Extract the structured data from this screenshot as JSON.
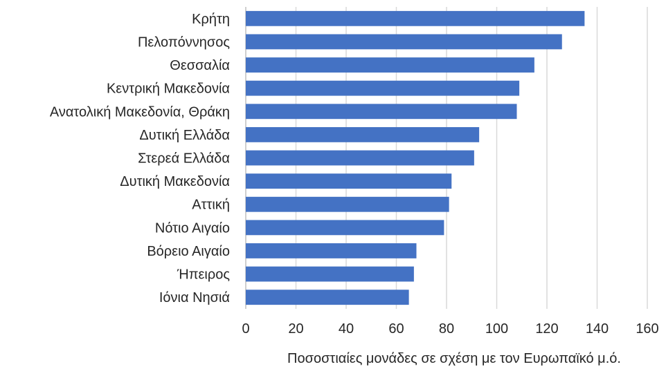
{
  "chart_data": {
    "type": "bar",
    "orientation": "horizontal",
    "categories": [
      "Κρήτη",
      "Πελοπόννησος",
      "Θεσσαλία",
      "Κεντρική Μακεδονία",
      "Ανατολική Μακεδονία, Θράκη",
      "Δυτική Ελλάδα",
      "Στερεά Ελλάδα",
      "Δυτική Μακεδονία",
      "Αττική",
      "Νότιο Αιγαίο",
      "Βόρειο Αιγαίο",
      "Ήπειρος",
      "Ιόνια Νησιά"
    ],
    "values": [
      135,
      126,
      115,
      109,
      108,
      93,
      91,
      82,
      81,
      79,
      68,
      67,
      65
    ],
    "xlabel": "Ποσοστιαίες μονάδες σε σχέση με τον Ευρωπαϊκό μ.ό.",
    "ylabel": "",
    "xlim": [
      0,
      160
    ],
    "xticks": [
      "0",
      "20",
      "40",
      "60",
      "80",
      "100",
      "120",
      "140",
      "160"
    ],
    "grid": "vertical",
    "bar_color": "#4472c4"
  }
}
